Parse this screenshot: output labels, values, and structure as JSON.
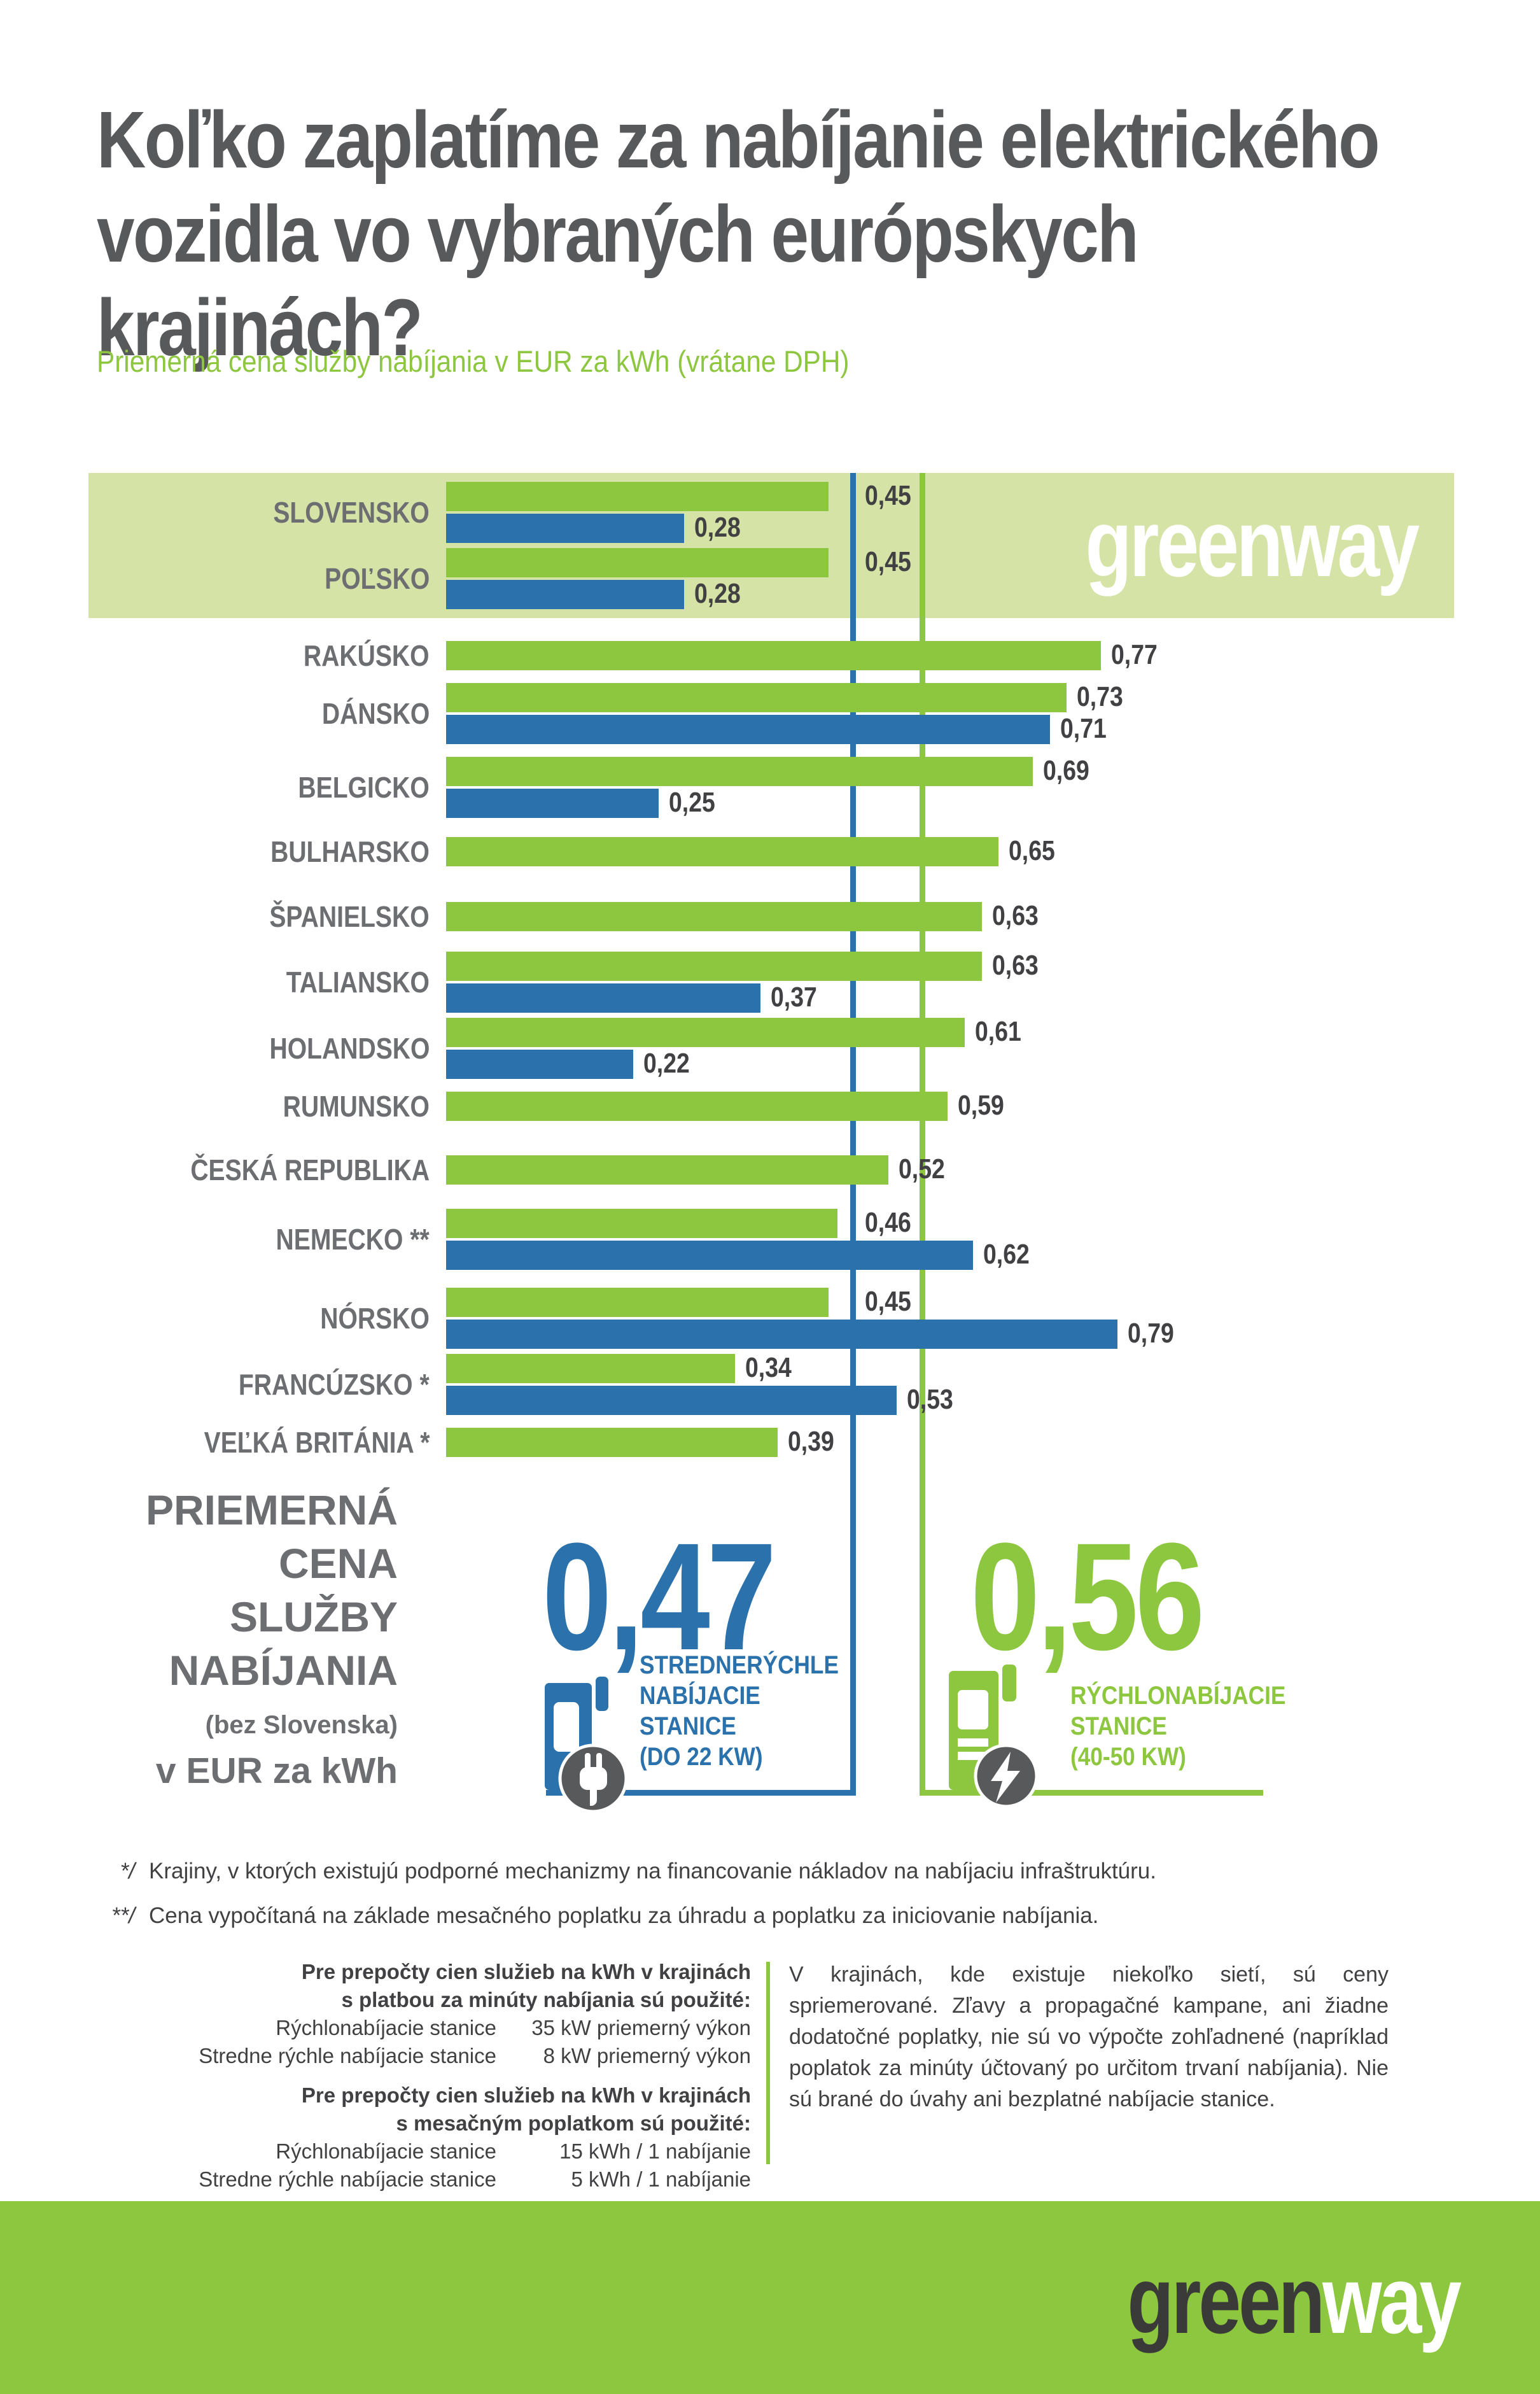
{
  "title": "Koľko zaplatíme za nabíjanie elektrického vozidla vo vybraných európskych krajinách?",
  "subtitle": "Priemerná cena služby nabíjania v EUR za kWh (vrátane DPH)",
  "logo": {
    "part1": "green",
    "part2": "way"
  },
  "colors": {
    "green": "#8dc63f",
    "blue": "#2b72ac",
    "band_green": "#d5e4a6",
    "title_gray": "#58595b",
    "label_gray": "#6d6e71",
    "value_dark": "#414042",
    "circle_gray": "#58595b"
  },
  "chart_data": {
    "type": "bar",
    "orientation": "horizontal",
    "unit": "EUR za kWh",
    "xlim": [
      0,
      0.85
    ],
    "series": [
      {
        "name": "Rýchlonabíjacie stanice (40-50 kW)",
        "color": "#8dc63f"
      },
      {
        "name": "Stredne rýchle nabíjacie stanice (do 22 kW)",
        "color": "#2b72ac"
      }
    ],
    "rows": [
      {
        "country": "SLOVENSKO",
        "highlight": true,
        "fast": {
          "value": 0.45,
          "label": "0,45",
          "label_after_line": true
        },
        "medium": {
          "value": 0.28,
          "label": "0,28"
        }
      },
      {
        "country": "POĽSKO",
        "highlight": true,
        "fast": {
          "value": 0.45,
          "label": "0,45",
          "label_after_line": true
        },
        "medium": {
          "value": 0.28,
          "label": "0,28"
        }
      },
      {
        "country": "RAKÚSKO",
        "fast": {
          "value": 0.77,
          "label": "0,77"
        }
      },
      {
        "country": "DÁNSKO",
        "fast": {
          "value": 0.73,
          "label": "0,73"
        },
        "medium": {
          "value": 0.71,
          "label": "0,71"
        }
      },
      {
        "country": "BELGICKO",
        "fast": {
          "value": 0.69,
          "label": "0,69"
        },
        "medium": {
          "value": 0.25,
          "label": "0,25"
        }
      },
      {
        "country": "BULHARSKO",
        "fast": {
          "value": 0.65,
          "label": "0,65"
        }
      },
      {
        "country": "ŠPANIELSKO",
        "fast": {
          "value": 0.63,
          "label": "0,63"
        }
      },
      {
        "country": "TALIANSKO",
        "fast": {
          "value": 0.63,
          "label": "0,63"
        },
        "medium": {
          "value": 0.37,
          "label": "0,37"
        }
      },
      {
        "country": "HOLANDSKO",
        "fast": {
          "value": 0.61,
          "label": "0,61"
        },
        "medium": {
          "value": 0.22,
          "label": "0,22"
        }
      },
      {
        "country": "RUMUNSKO",
        "fast": {
          "value": 0.59,
          "label": "0,59"
        }
      },
      {
        "country": "ČESKÁ REPUBLIKA",
        "fast": {
          "value": 0.52,
          "label": "0,52"
        }
      },
      {
        "country": "NEMECKO **",
        "fast": {
          "value": 0.46,
          "label": "0,46",
          "label_after_line": true
        },
        "medium": {
          "value": 0.62,
          "label": "0,62"
        }
      },
      {
        "country": "NÓRSKO",
        "fast": {
          "value": 0.45,
          "label": "0,45",
          "label_after_line": true
        },
        "medium": {
          "value": 0.79,
          "label": "0,79"
        }
      },
      {
        "country": "FRANCÚZSKO *",
        "fast": {
          "value": 0.34,
          "label": "0,34"
        },
        "medium": {
          "value": 0.53,
          "label": "0,53"
        }
      },
      {
        "country": "VEĽKÁ BRITÁNIA *",
        "fast": {
          "value": 0.39,
          "label": "0,39"
        }
      }
    ],
    "averages": {
      "medium": {
        "value": 0.47,
        "label": "0,47",
        "caption": [
          "STREDNERÝCHLE",
          "NABÍJACIE",
          "STANICE",
          "(DO 22 KW)"
        ]
      },
      "fast": {
        "value": 0.56,
        "label": "0,56",
        "caption": [
          "RÝCHLONABÍJACIE",
          "STANICE",
          "(40-50 KW)"
        ]
      }
    }
  },
  "summary": {
    "lines": [
      "PRIEMERNÁ",
      "CENA",
      "SLUŽBY",
      "NABÍJANIA"
    ],
    "sub": "(bez Slovenska)",
    "unit_line": "v EUR za kWh"
  },
  "footnotes": [
    {
      "marker": "*/",
      "text": "Krajiny, v ktorých existujú podporné mechanizmy na financovanie nákladov na nabíjaciu infraštruktúru."
    },
    {
      "marker": "**/",
      "text": "Cena vypočítaná na základe mesačného poplatku za úhradu a poplatku za iniciovanie nabíjania."
    }
  ],
  "methodology": {
    "block1": {
      "heading": [
        "Pre prepočty cien služieb na kWh v krajinách",
        "s platbou za minúty nabíjania sú použité:"
      ],
      "items": [
        {
          "name": "Rýchlonabíjacie stanice",
          "value": "35 kW priemerný výkon"
        },
        {
          "name": "Stredne rýchle nabíjacie stanice",
          "value": "8 kW priemerný výkon"
        }
      ]
    },
    "block2": {
      "heading": [
        "Pre prepočty cien služieb na kWh v krajinách",
        "s mesačným poplatkom sú použité:"
      ],
      "items": [
        {
          "name": "Rýchlonabíjacie stanice",
          "value": "15 kWh / 1 nabíjanie"
        },
        {
          "name": "Stredne rýchle nabíjacie stanice",
          "value": "5 kWh / 1 nabíjanie"
        }
      ]
    },
    "note": "V krajinách, kde existuje niekoľko sietí, sú ceny spriemerované. Zľavy a propagačné kampane, ani žiadne dodatočné poplatky, nie sú vo výpočte zohľadnené (napríklad poplatok za minúty účtovaný po určitom trvaní nabíjania). Nie sú brané do úvahy ani bezplatné nabíjacie stanice."
  }
}
